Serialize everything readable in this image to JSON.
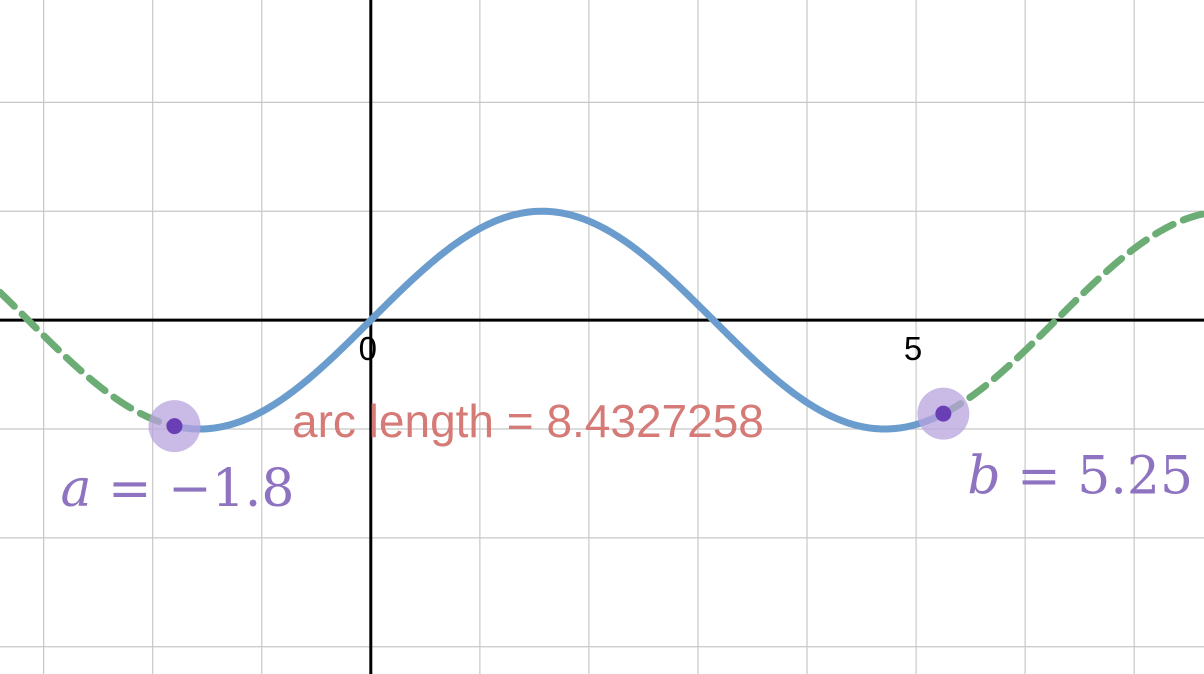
{
  "chart_data": {
    "type": "line",
    "function": "f(x) = sin(x)",
    "xlim": [
      -3.4,
      7.64
    ],
    "ylim": [
      -3.25,
      2.94
    ],
    "x_ticks": [
      {
        "value": 0,
        "label": "0"
      },
      {
        "value": 5,
        "label": "5"
      }
    ],
    "grid": true,
    "series": [
      {
        "role": "full-curve",
        "style": "dashed",
        "color": "#6bad75",
        "x_range": [
          -3.4,
          7.64
        ]
      },
      {
        "role": "arc-segment",
        "style": "solid",
        "color": "#6a9ccd",
        "x_range": [
          -1.8,
          5.25
        ]
      }
    ],
    "points": [
      {
        "name": "a",
        "x": -1.8,
        "y": -0.9738,
        "label_var": "a",
        "label_value": "= −1.8"
      },
      {
        "name": "b",
        "x": 5.25,
        "y": -0.8589,
        "label_var": "b",
        "label_value": "= 5.25"
      }
    ],
    "annotation": "arc length = 8.4327258"
  },
  "colors": {
    "arc_segment": "#6a9ccd",
    "full_curve": "#6bad75",
    "point_fill": "#6a3fb5",
    "point_halo": "#b8a3dd",
    "param_label": "#8e73c0",
    "annotation": "#d57a76",
    "grid": "#c8c8c8",
    "axis": "#000000"
  }
}
